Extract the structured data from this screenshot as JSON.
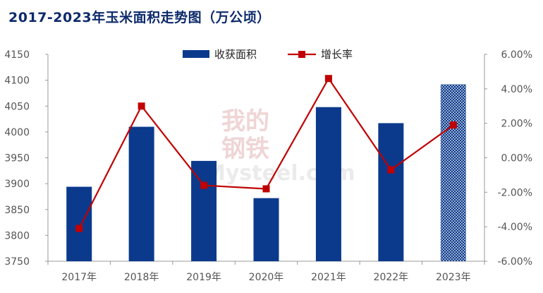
{
  "title": "2017-2023年玉米面积走势图（万公顷）",
  "watermark": {
    "line1": "我的",
    "line2": "钢铁",
    "brand": "Mysteel.com"
  },
  "colors": {
    "bar": "#0b3a8c",
    "line": "#c00000",
    "axis": "#999999",
    "title": "#0d2a6b"
  },
  "chart_data": {
    "type": "bar",
    "categories": [
      "2017年",
      "2018年",
      "2019年",
      "2020年",
      "2021年",
      "2022年",
      "2023年"
    ],
    "series": [
      {
        "name": "收获面积",
        "type": "bar",
        "axis": "left",
        "values": [
          3894,
          4010,
          3944,
          3872,
          4048,
          4017,
          4092
        ],
        "pattern_last": true
      },
      {
        "name": "增长率",
        "type": "line",
        "axis": "right",
        "values": [
          -4.1,
          3.0,
          -1.6,
          -1.8,
          4.6,
          -0.7,
          1.9
        ]
      }
    ],
    "y_left": {
      "min": 3750,
      "max": 4150,
      "ticks": [
        "3750",
        "3800",
        "3850",
        "3900",
        "3950",
        "4000",
        "4050",
        "4100",
        "4150"
      ]
    },
    "y_right": {
      "min": -6,
      "max": 6,
      "ticks": [
        "-6.00%",
        "-4.00%",
        "-2.00%",
        "0.00%",
        "2.00%",
        "4.00%",
        "6.00%"
      ]
    },
    "legend_position": "top-center",
    "grid": false
  }
}
